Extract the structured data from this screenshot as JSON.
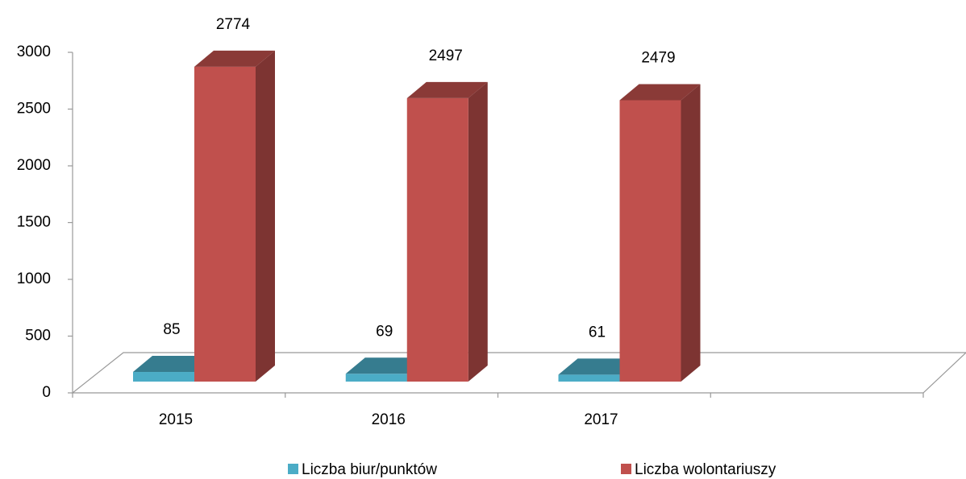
{
  "chart_data": {
    "type": "bar3d",
    "categories": [
      "2015",
      "2016",
      "2017",
      null
    ],
    "series": [
      {
        "name": "Liczba biur/punktów",
        "color": "#4bacc6",
        "values": [
          85,
          69,
          61,
          null
        ]
      },
      {
        "name": "Liczba wolontariuszy",
        "color": "#c0504d",
        "values": [
          2774,
          2497,
          2479,
          null
        ]
      }
    ],
    "ylim": [
      0,
      3000
    ],
    "yticks": [
      0,
      500,
      1000,
      1500,
      2000,
      2500,
      3000
    ]
  }
}
